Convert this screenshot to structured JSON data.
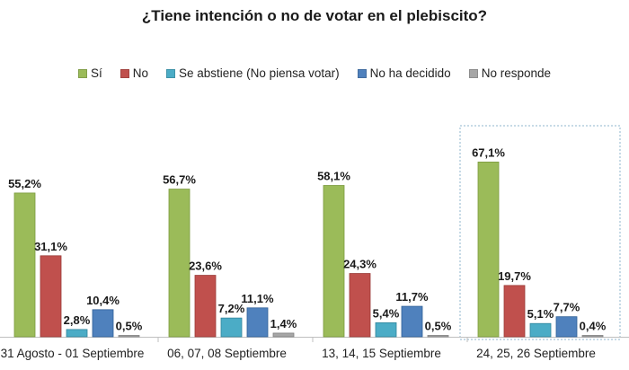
{
  "chart_data": {
    "type": "bar",
    "title": "¿Tiene intención o no de votar en el plebiscito?",
    "xlabel": "",
    "ylabel": "",
    "ylim": [
      0,
      70
    ],
    "grid": false,
    "legend_position": "top",
    "categories": [
      "31 Agosto - 01 Septiembre",
      "06, 07, 08 Septiembre",
      "13, 14, 15 Septiembre",
      "24, 25, 26 Septiembre"
    ],
    "highlighted_category": "24, 25, 26 Septiembre",
    "series": [
      {
        "name": "Sí",
        "color": "#9bbb59",
        "border": "#7a9a3c",
        "values": [
          55.2,
          56.7,
          58.1,
          67.1
        ],
        "labels": [
          "55,2%",
          "56,7%",
          "58,1%",
          "67,1%"
        ]
      },
      {
        "name": "No",
        "color": "#c0504d",
        "border": "#9a3a37",
        "values": [
          31.1,
          23.6,
          24.3,
          19.7
        ],
        "labels": [
          "31,1%",
          "23,6%",
          "24,3%",
          "19,7%"
        ]
      },
      {
        "name": "Se abstiene (No piensa votar)",
        "color": "#4bacc6",
        "border": "#31859c",
        "values": [
          2.8,
          7.2,
          5.4,
          5.1
        ],
        "labels": [
          "2,8%",
          "7,2%",
          "5,4%",
          "5,1%"
        ]
      },
      {
        "name": "No ha decidido",
        "color": "#4f81bd",
        "border": "#2f5f96",
        "values": [
          10.4,
          11.1,
          11.7,
          7.7
        ],
        "labels": [
          "10,4%",
          "11,1%",
          "11,7%",
          "7,7%"
        ]
      },
      {
        "name": "No responde",
        "color": "#a6a6a6",
        "border": "#808080",
        "values": [
          0.5,
          1.4,
          0.5,
          0.4
        ],
        "labels": [
          "0,5%",
          "1,4%",
          "0,5%",
          "0,4%"
        ]
      }
    ]
  }
}
